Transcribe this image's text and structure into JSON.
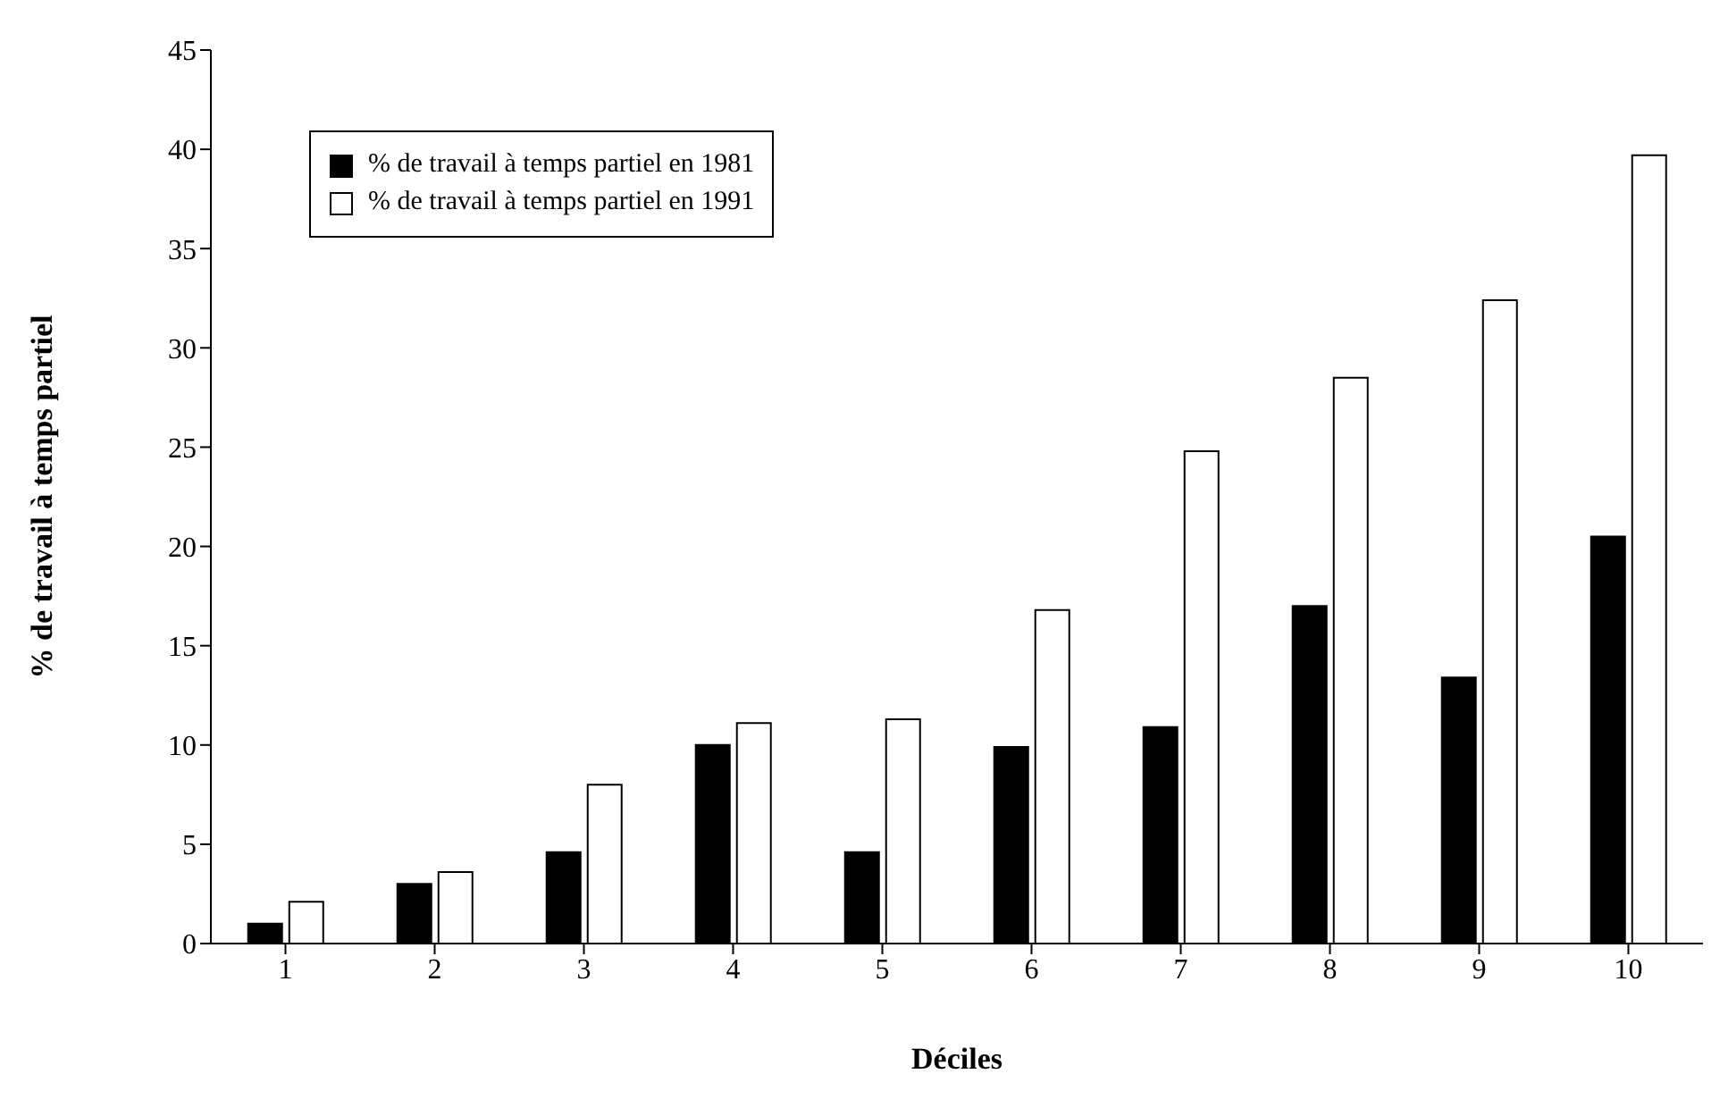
{
  "chart_data": {
    "type": "bar",
    "xlabel": "Déciles",
    "ylabel": "% de travail à temps partiel",
    "categories": [
      "1",
      "2",
      "3",
      "4",
      "5",
      "6",
      "7",
      "8",
      "9",
      "10"
    ],
    "series": [
      {
        "name": "% de travail à temps partiel en 1981",
        "color": "#000000",
        "values": [
          1.0,
          3.0,
          4.6,
          10.0,
          4.6,
          9.9,
          10.9,
          17.0,
          13.4,
          20.5
        ]
      },
      {
        "name": "% de travail à temps partiel en 1991",
        "color": "#ffffff",
        "values": [
          2.1,
          3.6,
          8.0,
          11.1,
          11.3,
          16.8,
          24.8,
          28.5,
          32.4,
          39.7
        ]
      }
    ],
    "ylim": [
      0,
      45
    ],
    "yticks": [
      0,
      5,
      10,
      15,
      20,
      25,
      30,
      35,
      40,
      45
    ],
    "grid": false,
    "legend": "top left"
  }
}
